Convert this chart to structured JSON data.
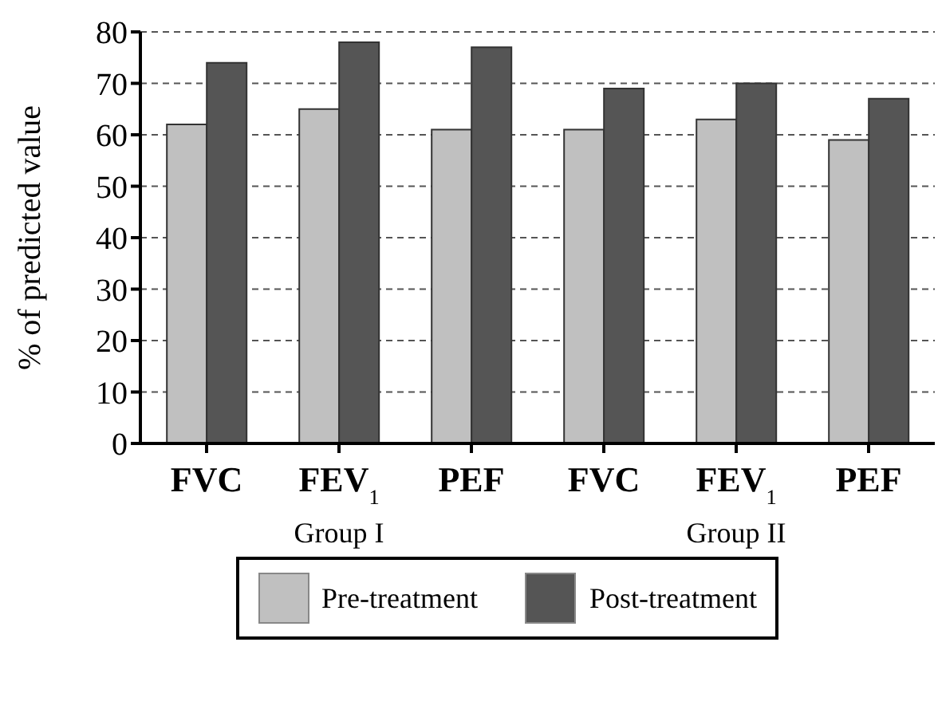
{
  "chart_data": {
    "type": "bar",
    "ylabel": "% of predicted value",
    "categories": [
      "FVC",
      "FEV$_{1}$",
      "PEF",
      "FVC",
      "FEV$_{1}$",
      "PEF"
    ],
    "series": [
      {
        "name": "Pre-treatment",
        "color": "#c0c0c0",
        "values": [
          62,
          65,
          61,
          61,
          63,
          59
        ]
      },
      {
        "name": "Post-treatment",
        "color": "#555555",
        "values": [
          74,
          78,
          77,
          69,
          70,
          67
        ]
      }
    ],
    "ylim": [
      0,
      80
    ],
    "yticks": [
      0,
      10,
      20,
      30,
      40,
      50,
      60,
      70,
      80
    ],
    "grid": "y",
    "line_style": "dashed",
    "legend": "bottom",
    "annotations": [
      "Group I",
      "Group II"
    ]
  }
}
